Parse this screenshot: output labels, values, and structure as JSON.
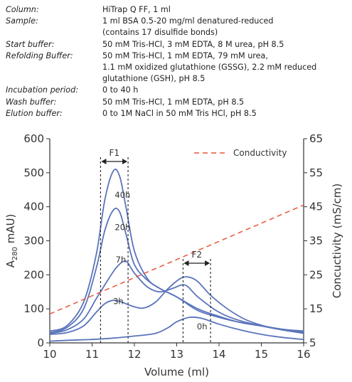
{
  "conditions": [
    {
      "label": "Column:",
      "value": "HiTrap Q FF, 1 ml"
    },
    {
      "label": "Sample:",
      "value": "1 ml BSA 0.5-20 mg/ml denatured-reduced\n(contains 17 disulfide bonds)"
    },
    {
      "label": "Start buffer:",
      "value": "50 mM Tris-HCl, 3 mM EDTA, 8 M urea, pH 8.5"
    },
    {
      "label": "Refolding Buffer:",
      "value": "50 mM Tris-HCl, 1 mM EDTA, 79 mM urea,\n1.1 mM oxidized glutathione (GSSG), 2.2 mM reduced\nglutathione (GSH), pH 8.5"
    },
    {
      "label": "Incubation period:",
      "value": "0 to 40 h"
    },
    {
      "label": "Wash buffer:",
      "value": "50 mM Tris-HCl, 1 mM EDTA, pH 8.5"
    },
    {
      "label": "Elution buffer:",
      "value": "0 to 1M NaCl in 50 mM Tris HCl, pH 8.5"
    }
  ],
  "chart_data": {
    "type": "line",
    "xlabel": "Volume (ml)",
    "ylabel_main": "A",
    "ylabel_sub": "280",
    "ylabel_unit": " mAU)",
    "y2label": "Concuctivity (mS/cm)",
    "xlim": [
      10,
      16
    ],
    "ylim": [
      0,
      600
    ],
    "y2lim": [
      5,
      65
    ],
    "xticks": [
      10,
      11,
      12,
      13,
      14,
      15,
      16
    ],
    "yticks": [
      0,
      100,
      200,
      300,
      400,
      500,
      600
    ],
    "y2ticks": [
      5,
      15,
      25,
      35,
      45,
      55,
      65
    ],
    "grid": false,
    "legend": {
      "position": "top-right",
      "label": "Conductivity"
    },
    "colors": {
      "traces": "#5a74bb",
      "conductivity": "#e8553a",
      "axis": "#333333"
    },
    "series": [
      {
        "name": "40h",
        "x": [
          10.0,
          10.4,
          10.8,
          11.1,
          11.3,
          11.5,
          11.65,
          11.8,
          12.0,
          12.3,
          12.6,
          13.0,
          13.5,
          14.0,
          14.5,
          15.0,
          15.5,
          16.0
        ],
        "y": [
          35,
          50,
          120,
          260,
          420,
          505,
          490,
          400,
          270,
          190,
          160,
          135,
          95,
          75,
          60,
          50,
          40,
          35
        ]
      },
      {
        "name": "20h",
        "x": [
          10.0,
          10.4,
          10.8,
          11.1,
          11.3,
          11.5,
          11.65,
          11.8,
          12.0,
          12.3,
          12.6,
          13.0,
          13.5,
          14.0,
          14.5,
          15.0,
          15.5,
          16.0
        ],
        "y": [
          30,
          45,
          100,
          220,
          330,
          390,
          385,
          320,
          230,
          185,
          160,
          135,
          100,
          78,
          60,
          50,
          40,
          32
        ]
      },
      {
        "name": "7h",
        "x": [
          10.0,
          10.4,
          10.8,
          11.1,
          11.4,
          11.6,
          11.8,
          12.0,
          12.3,
          12.6,
          12.9,
          13.2,
          13.5,
          14.0,
          14.5,
          15.0,
          15.5,
          16.0
        ],
        "y": [
          28,
          38,
          70,
          130,
          190,
          225,
          240,
          205,
          165,
          150,
          160,
          170,
          135,
          90,
          65,
          50,
          38,
          30
        ]
      },
      {
        "name": "3h",
        "x": [
          10.0,
          10.4,
          10.8,
          11.1,
          11.3,
          11.5,
          11.7,
          11.9,
          12.2,
          12.5,
          12.8,
          13.1,
          13.3,
          13.5,
          13.8,
          14.2,
          14.6,
          15.0,
          15.5,
          16.0
        ],
        "y": [
          25,
          30,
          50,
          90,
          115,
          125,
          120,
          110,
          102,
          120,
          160,
          190,
          193,
          180,
          140,
          100,
          70,
          52,
          38,
          28
        ]
      },
      {
        "name": "0h",
        "x": [
          10.0,
          10.5,
          11.0,
          11.5,
          12.0,
          12.5,
          12.8,
          13.0,
          13.3,
          13.6,
          14.0,
          14.5,
          15.0,
          15.5,
          16.0
        ],
        "y": [
          5,
          8,
          10,
          14,
          20,
          28,
          45,
          62,
          75,
          72,
          55,
          38,
          25,
          16,
          10
        ]
      },
      {
        "name": "Conductivity",
        "axis": "right",
        "dashed": true,
        "x": [
          10,
          16
        ],
        "y": [
          13.5,
          45.5
        ]
      }
    ],
    "fractions": [
      {
        "label": "F1",
        "x": [
          11.2,
          11.85
        ]
      },
      {
        "label": "F2",
        "x": [
          13.15,
          13.8
        ]
      }
    ],
    "annotations": [
      {
        "text": "40h",
        "x": 11.72,
        "y": 435
      },
      {
        "text": "20h",
        "x": 11.72,
        "y": 340
      },
      {
        "text": "7h",
        "x": 11.68,
        "y": 245
      },
      {
        "text": "3h",
        "x": 11.62,
        "y": 122
      },
      {
        "text": "0h",
        "x": 13.6,
        "y": 48
      }
    ]
  }
}
